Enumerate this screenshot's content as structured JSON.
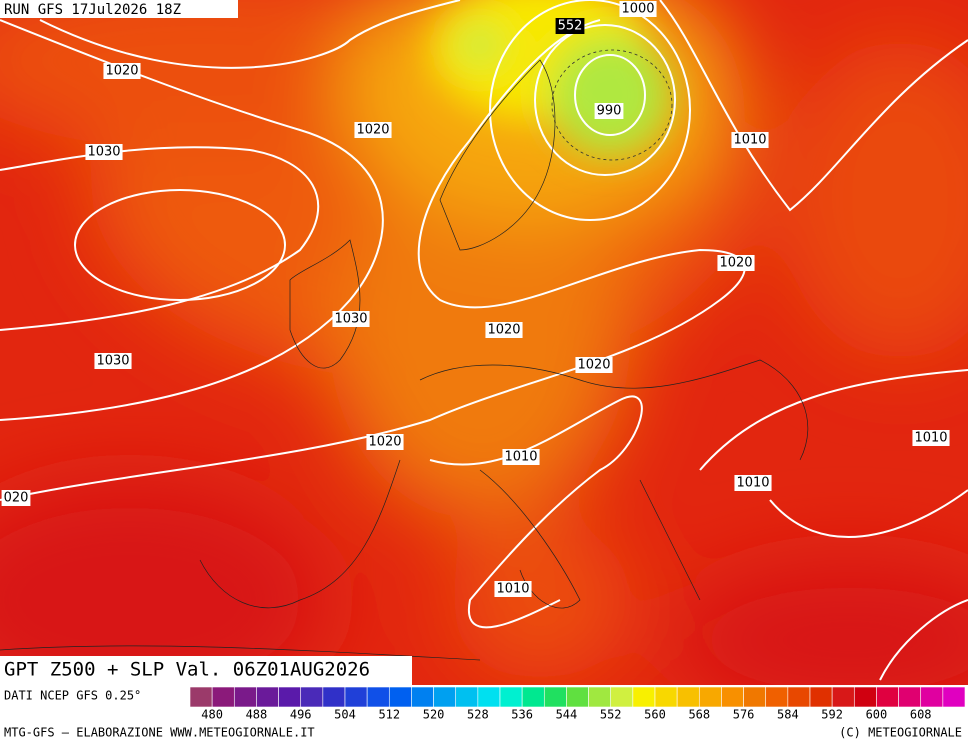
{
  "header": {
    "run": "RUN GFS 17Jul2026 18Z"
  },
  "isobar_labels": [
    "1000",
    "552",
    "1020",
    "1020",
    "990",
    "1010",
    "1030",
    "1020",
    "1030",
    "1020",
    "1030",
    "1020",
    "1020",
    "1010",
    "1010",
    "1010",
    "020",
    "1010"
  ],
  "footer": {
    "title": "GPT Z500 + SLP Val. 06Z01AUG2026",
    "source": "DATI NCEP GFS 0.25°",
    "credit": "MTG-GFS — ELABORAZIONE WWW.METEOGIORNALE.IT",
    "copyright": "(C) METEOGIORNALE"
  },
  "colorbar": {
    "labels": [
      "480",
      "488",
      "496",
      "504",
      "512",
      "520",
      "528",
      "536",
      "544",
      "552",
      "560",
      "568",
      "576",
      "584",
      "592",
      "600",
      "608"
    ],
    "colors": [
      "#9b3a6a",
      "#8b1a7a",
      "#7a1a8a",
      "#6a1a9a",
      "#5a1aaa",
      "#4a2ab8",
      "#3030c8",
      "#2040d8",
      "#1050e8",
      "#0060f0",
      "#0080f0",
      "#00a0f0",
      "#00c0f0",
      "#00e0f0",
      "#00f0d0",
      "#00e890",
      "#20e060",
      "#60e040",
      "#a0e840",
      "#d0f040",
      "#f8f000",
      "#f8d800",
      "#f8c000",
      "#f8a800",
      "#f89000",
      "#f07800",
      "#f06000",
      "#e84800",
      "#e03000",
      "#d81818",
      "#d00010",
      "#e00040",
      "#e00070",
      "#e000a0",
      "#e000c0"
    ]
  }
}
